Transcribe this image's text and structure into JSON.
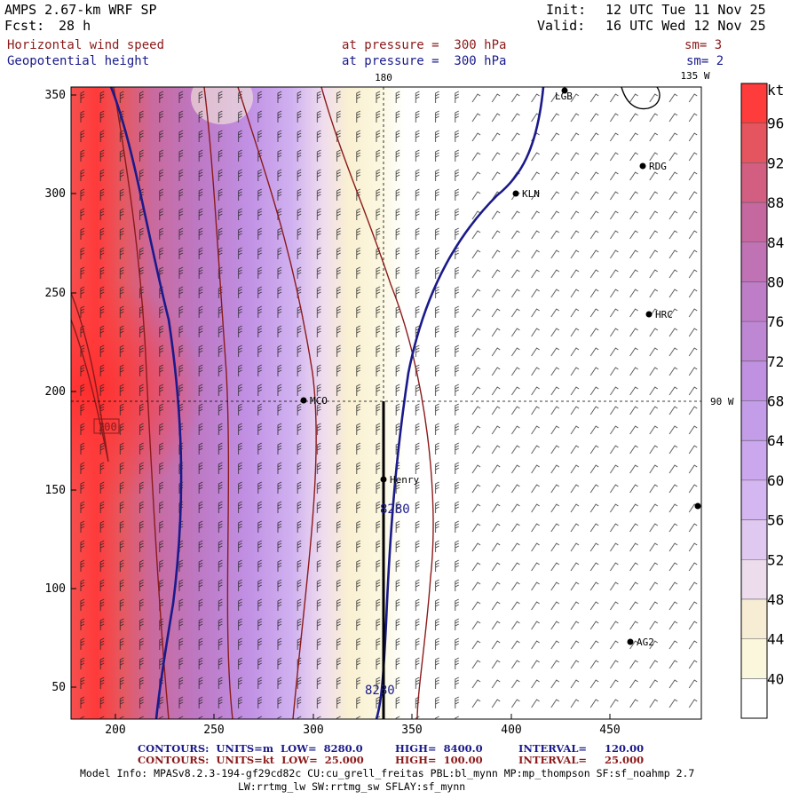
{
  "header": {
    "model": "AMPS 2.67-km WRF SP",
    "fcst_label": "Fcst:",
    "fcst_hours": "28 h",
    "init_label": "Init:",
    "init_time": "12 UTC Tue 11 Nov 25",
    "valid_label": "Valid:",
    "valid_time": "16 UTC Wed 12 Nov 25"
  },
  "fields": [
    {
      "name": "Horizontal wind speed",
      "level": "at pressure =  300 hPa",
      "smooth": "sm= 3"
    },
    {
      "name": "Geopotential height",
      "level": "at pressure =  300 hPa",
      "smooth": "sm= 2"
    }
  ],
  "map": {
    "x_ticks": [
      "200",
      "250",
      "300",
      "350",
      "400",
      "450"
    ],
    "y_ticks": [
      "350",
      "300",
      "250",
      "200",
      "150",
      "100",
      "50"
    ],
    "meridian_180": "180",
    "meridian_135w": "135 W",
    "meridian_90w": "90 W",
    "stations": [
      {
        "id": "LGB",
        "label": "LGB"
      },
      {
        "id": "RDG",
        "label": "RDG"
      },
      {
        "id": "KLN",
        "label": "KLN"
      },
      {
        "id": "HRC",
        "label": "HRC"
      },
      {
        "id": "MCO",
        "label": "MCO"
      },
      {
        "id": "Henry",
        "label": "Henry"
      },
      {
        "id": "AG2",
        "label": "AG2"
      }
    ],
    "contour_labels": [
      {
        "id": "c8280a",
        "text": "8280"
      },
      {
        "id": "c8280b",
        "text": "8280"
      },
      {
        "id": "c100",
        "text": "100"
      }
    ]
  },
  "colorbar": {
    "unit": "kt",
    "levels": [
      "96",
      "92",
      "88",
      "84",
      "80",
      "76",
      "72",
      "68",
      "64",
      "60",
      "56",
      "52",
      "48",
      "44",
      "40"
    ],
    "colors": [
      "#ff3c3c",
      "#e55560",
      "#d25f82",
      "#c668a0",
      "#bf73b5",
      "#bd7dc7",
      "#bd87d4",
      "#bf91e0",
      "#c49de8",
      "#cba8ee",
      "#d4b6f0",
      "#e0c9f0",
      "#ecdcec",
      "#f7edd5",
      "#fbf7dd",
      "#ffffff"
    ]
  },
  "footer": {
    "line1_left": "CONTOURS:  UNITS=m  LOW=  8280.0",
    "line1_mid": "HIGH=  8400.0",
    "line1_right": "INTERVAL=     120.00",
    "line2_left": "CONTOURS:  UNITS=kt  LOW=  25.000",
    "line2_mid": "HIGH=  100.00",
    "line2_right": "INTERVAL=     25.000",
    "info1": "Model Info: MPASv8.2.3-194-gf29cd82c CU:cu_grell_freitas PBL:bl_mynn MP:mp_thompson SF:sf_noahmp 2.7",
    "info2": "LW:rrtmg_lw SW:rrtmg_sw SFLAY:sf_mynn"
  }
}
